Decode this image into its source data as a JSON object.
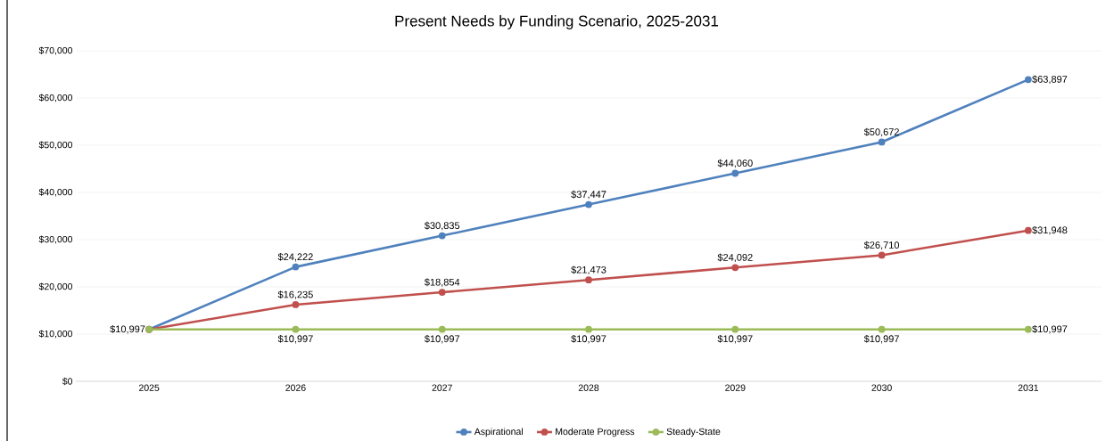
{
  "chart_data": {
    "type": "line",
    "title": "Present Needs by Funding Scenario, 2025-2031",
    "categories": [
      "2025",
      "2026",
      "2027",
      "2028",
      "2029",
      "2030",
      "2031"
    ],
    "series": [
      {
        "name": "Aspirational",
        "color": "#4f81bd",
        "values": [
          10997,
          24222,
          30835,
          37447,
          44060,
          50672,
          63897
        ],
        "value_labels": [
          null,
          "$24,222",
          "$30,835",
          "$37,447",
          "$44,060",
          "$50,672",
          "$63,897"
        ]
      },
      {
        "name": "Moderate Progress",
        "color": "#c0504d",
        "values": [
          10997,
          16235,
          18854,
          21473,
          24092,
          26710,
          31948
        ],
        "value_labels": [
          null,
          "$16,235",
          "$18,854",
          "$21,473",
          "$24,092",
          "$26,710",
          "$31,948"
        ]
      },
      {
        "name": "Steady-State",
        "color": "#9bbb59",
        "values": [
          10997,
          10997,
          10997,
          10997,
          10997,
          10997,
          10997
        ],
        "value_labels": [
          "$10,997",
          "$10,997",
          "$10,997",
          "$10,997",
          "$10,997",
          "$10,997",
          "$10,997"
        ]
      }
    ],
    "ylim": [
      0,
      70000
    ],
    "yticks": [
      {
        "value": 0,
        "label": "$0"
      },
      {
        "value": 10000,
        "label": "$10,000"
      },
      {
        "value": 20000,
        "label": "$20,000"
      },
      {
        "value": 30000,
        "label": "$30,000"
      },
      {
        "value": 40000,
        "label": "$40,000"
      },
      {
        "value": 50000,
        "label": "$50,000"
      },
      {
        "value": 60000,
        "label": "$60,000"
      },
      {
        "value": 70000,
        "label": "$70,000"
      }
    ],
    "grid": "y",
    "legend": "bottom",
    "marker": "circle",
    "line_style": "solid"
  }
}
